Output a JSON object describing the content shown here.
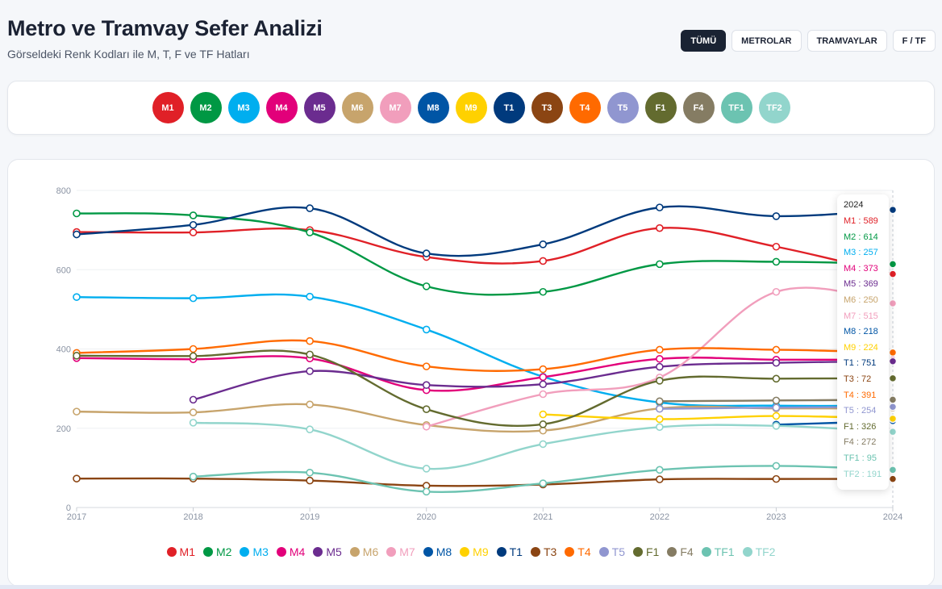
{
  "header": {
    "title": "Metro ve Tramvay Sefer Analizi",
    "subtitle": "Görseldeki Renk Kodları ile M, T, F ve TF Hatları"
  },
  "filters": [
    "TÜMÜ",
    "METROLAR",
    "TRAMVAYLAR",
    "F / TF"
  ],
  "active_filter": 0,
  "lines": [
    {
      "code": "M1",
      "color": "#e02027"
    },
    {
      "code": "M2",
      "color": "#009844"
    },
    {
      "code": "M3",
      "color": "#00aeef"
    },
    {
      "code": "M4",
      "color": "#e2007a"
    },
    {
      "code": "M5",
      "color": "#6b2c8f"
    },
    {
      "code": "M6",
      "color": "#c7a46c"
    },
    {
      "code": "M7",
      "color": "#f19ebc"
    },
    {
      "code": "M8",
      "color": "#0055a5"
    },
    {
      "code": "M9",
      "color": "#ffd100"
    },
    {
      "code": "T1",
      "color": "#003a7d"
    },
    {
      "code": "T3",
      "color": "#8b4513"
    },
    {
      "code": "T4",
      "color": "#ff6a00"
    },
    {
      "code": "T5",
      "color": "#9096d0"
    },
    {
      "code": "F1",
      "color": "#636b2f"
    },
    {
      "code": "F4",
      "color": "#857c63"
    },
    {
      "code": "TF1",
      "color": "#6cc3b1"
    },
    {
      "code": "TF2",
      "color": "#92d5cc"
    }
  ],
  "tooltip": {
    "title": "2024",
    "rows": [
      "M1 : 589",
      "M2 : 614",
      "M3 : 257",
      "M4 : 373",
      "M5 : 369",
      "M6 : 250",
      "M7 : 515",
      "M8 : 218",
      "M9 : 224",
      "T1 : 751",
      "T3 : 72",
      "T4 : 391",
      "T5 : 254",
      "F1 : 326",
      "F4 : 272",
      "TF1 : 95",
      "TF2 : 191"
    ]
  },
  "chart_data": {
    "type": "line",
    "x": [
      "2017",
      "2018",
      "2019",
      "2020",
      "2021",
      "2022",
      "2023",
      "2024"
    ],
    "ylim": [
      0,
      800
    ],
    "yticks": [
      "0",
      "200",
      "400",
      "600",
      "800"
    ],
    "grid": true,
    "legend_position": "bottom",
    "series": [
      {
        "name": "M1",
        "values": [
          695,
          694,
          700,
          632,
          622,
          705,
          658,
          589
        ]
      },
      {
        "name": "M2",
        "values": [
          742,
          737,
          694,
          558,
          544,
          614,
          620,
          614
        ]
      },
      {
        "name": "M3",
        "values": [
          531,
          528,
          532,
          449,
          330,
          265,
          257,
          257
        ]
      },
      {
        "name": "M4",
        "values": [
          377,
          374,
          376,
          296,
          329,
          375,
          373,
          373
        ]
      },
      {
        "name": "M5",
        "values": [
          null,
          272,
          344,
          309,
          311,
          355,
          365,
          369
        ]
      },
      {
        "name": "M6",
        "values": [
          242,
          240,
          260,
          208,
          194,
          250,
          250,
          250
        ]
      },
      {
        "name": "M7",
        "values": [
          null,
          null,
          null,
          204,
          286,
          328,
          544,
          515
        ]
      },
      {
        "name": "M8",
        "values": [
          null,
          null,
          null,
          null,
          null,
          null,
          209,
          218
        ]
      },
      {
        "name": "M9",
        "values": [
          null,
          null,
          null,
          null,
          235,
          223,
          231,
          224
        ]
      },
      {
        "name": "T1",
        "values": [
          689,
          713,
          755,
          641,
          664,
          757,
          735,
          751
        ]
      },
      {
        "name": "T3",
        "values": [
          73,
          73,
          68,
          55,
          58,
          71,
          72,
          72
        ]
      },
      {
        "name": "T4",
        "values": [
          390,
          400,
          420,
          356,
          349,
          398,
          398,
          391
        ]
      },
      {
        "name": "T5",
        "values": [
          null,
          null,
          null,
          null,
          null,
          249,
          252,
          254
        ]
      },
      {
        "name": "F1",
        "values": [
          383,
          382,
          386,
          248,
          210,
          320,
          325,
          326
        ]
      },
      {
        "name": "F4",
        "values": [
          null,
          null,
          null,
          null,
          null,
          268,
          270,
          272
        ]
      },
      {
        "name": "TF1",
        "values": [
          null,
          78,
          88,
          40,
          61,
          95,
          105,
          95
        ]
      },
      {
        "name": "TF2",
        "values": [
          null,
          214,
          197,
          98,
          160,
          203,
          206,
          191
        ]
      }
    ]
  }
}
